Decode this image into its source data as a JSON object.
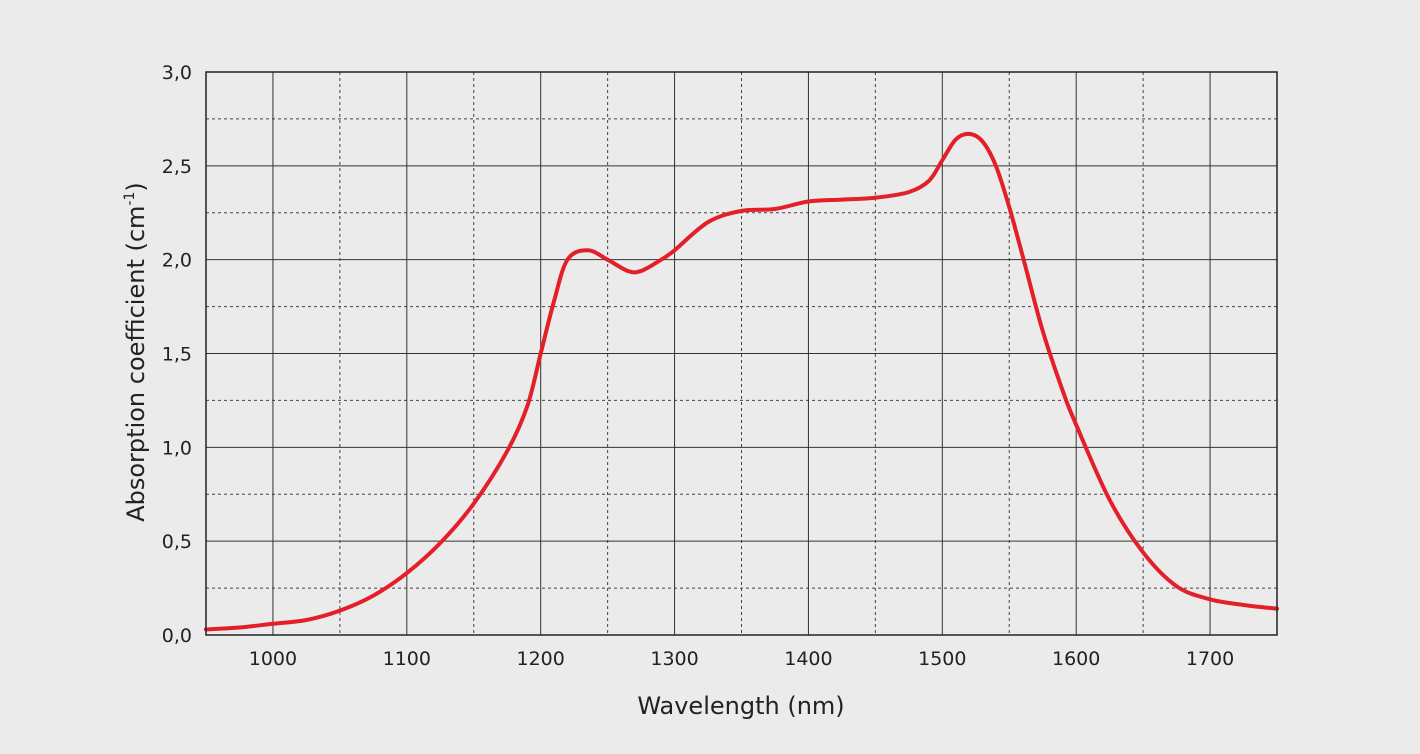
{
  "chart_data": {
    "type": "line",
    "xlabel": "Wavelength (nm)",
    "ylabel": {
      "main": "Absorption coefficient (cm",
      "superscript": "-1",
      "close": ")"
    },
    "xlim": [
      950,
      1750
    ],
    "ylim": [
      0,
      3
    ],
    "xticks": [
      1000,
      1100,
      1200,
      1300,
      1400,
      1500,
      1600,
      1700
    ],
    "xtick_labels": [
      "1000",
      "1100",
      "1200",
      "1300",
      "1400",
      "1500",
      "1600",
      "1700"
    ],
    "yticks": [
      0,
      0.5,
      1.0,
      1.5,
      2.0,
      2.5,
      3.0
    ],
    "ytick_labels": [
      "0,0",
      "0,5",
      "1,0",
      "1,5",
      "2,0",
      "2,5",
      "3,0"
    ],
    "grid": {
      "major_solid": true,
      "minor_dashed": true,
      "x_minor_step": 50,
      "y_minor_step": 0.25
    },
    "series": [
      {
        "color": "#e3202a",
        "x": [
          950,
          975,
          1000,
          1025,
          1050,
          1075,
          1100,
          1125,
          1150,
          1175,
          1190,
          1200,
          1210,
          1220,
          1235,
          1250,
          1265,
          1275,
          1290,
          1300,
          1325,
          1350,
          1375,
          1400,
          1425,
          1450,
          1475,
          1490,
          1500,
          1510,
          1520,
          1530,
          1540,
          1550,
          1560,
          1575,
          1590,
          1600,
          1625,
          1650,
          1675,
          1700,
          1725,
          1750
        ],
        "y": [
          0.03,
          0.04,
          0.06,
          0.08,
          0.13,
          0.21,
          0.33,
          0.49,
          0.7,
          0.98,
          1.22,
          1.5,
          1.78,
          2.0,
          2.05,
          2.0,
          1.94,
          1.94,
          2.0,
          2.05,
          2.2,
          2.26,
          2.27,
          2.31,
          2.32,
          2.33,
          2.36,
          2.42,
          2.53,
          2.64,
          2.67,
          2.63,
          2.5,
          2.28,
          2.02,
          1.62,
          1.3,
          1.12,
          0.72,
          0.44,
          0.26,
          0.19,
          0.16,
          0.14
        ]
      }
    ]
  }
}
